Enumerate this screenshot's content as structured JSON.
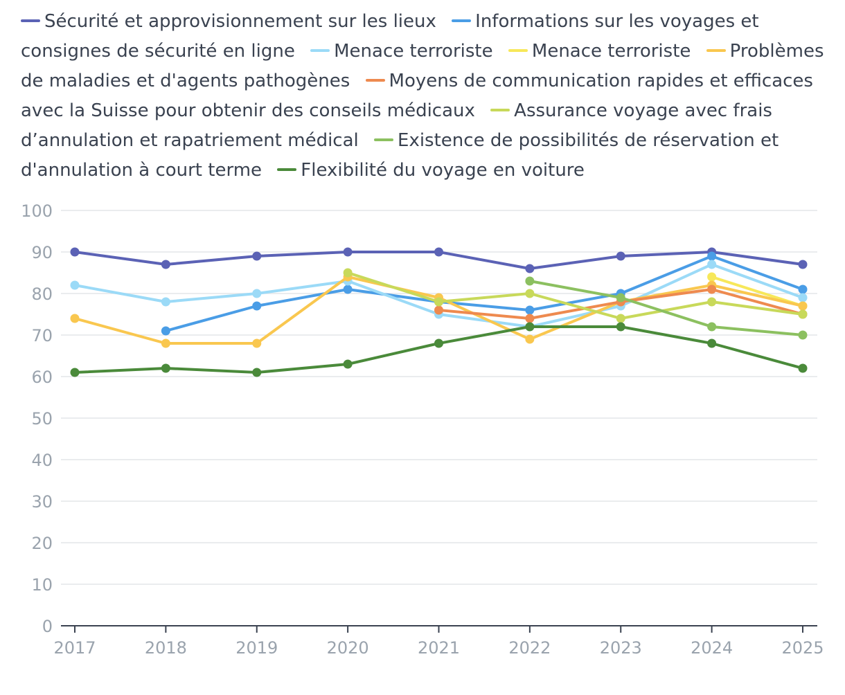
{
  "chart_data": {
    "type": "line",
    "title": "",
    "xlabel": "",
    "ylabel": "",
    "ylim": [
      0,
      100
    ],
    "yticks": [
      0,
      10,
      20,
      30,
      40,
      50,
      60,
      70,
      80,
      90,
      100
    ],
    "categories": [
      "2017",
      "2018",
      "2019",
      "2020",
      "2021",
      "2022",
      "2023",
      "2024",
      "2025"
    ],
    "legend_position": "top",
    "grid": true,
    "series": [
      {
        "name": "Sécurité et approvisionnement sur les lieux",
        "color": "#5b62b5",
        "values": [
          90,
          87,
          89,
          90,
          90,
          86,
          89,
          90,
          87
        ]
      },
      {
        "name": "Informations sur les voyages et consignes de sécurité en ligne",
        "color": "#4a9de6",
        "values": [
          null,
          71,
          77,
          81,
          78,
          76,
          80,
          89,
          81
        ]
      },
      {
        "name": "Menace terroriste",
        "color": "#9bdaf7",
        "values": [
          82,
          78,
          80,
          83,
          75,
          72,
          77,
          87,
          79
        ]
      },
      {
        "name": "Menace terroriste",
        "color": "#f7e85a",
        "values": [
          null,
          null,
          null,
          null,
          null,
          null,
          null,
          84,
          77
        ]
      },
      {
        "name": "Problèmes de maladies et d'agents pathogènes",
        "color": "#f9c74f",
        "values": [
          74,
          68,
          68,
          84,
          79,
          69,
          78,
          82,
          77
        ]
      },
      {
        "name": "Moyens de communication rapides et efficaces avec la Suisse pour obtenir des conseils médicaux",
        "color": "#ee8a4f",
        "values": [
          null,
          null,
          null,
          null,
          76,
          74,
          78,
          81,
          75
        ]
      },
      {
        "name": "Assurance voyage avec frais d’annulation et rapatriement médical",
        "color": "#c8d95a",
        "values": [
          null,
          null,
          null,
          85,
          78,
          80,
          74,
          78,
          75
        ]
      },
      {
        "name": "Existence de possibilités de réservation et d'annulation à court terme",
        "color": "#8cc060",
        "values": [
          null,
          null,
          null,
          null,
          null,
          83,
          79,
          72,
          70
        ]
      },
      {
        "name": "Flexibilité du voyage en voiture",
        "color": "#4a8a3a",
        "values": [
          61,
          62,
          61,
          63,
          68,
          72,
          72,
          68,
          62
        ]
      }
    ]
  }
}
